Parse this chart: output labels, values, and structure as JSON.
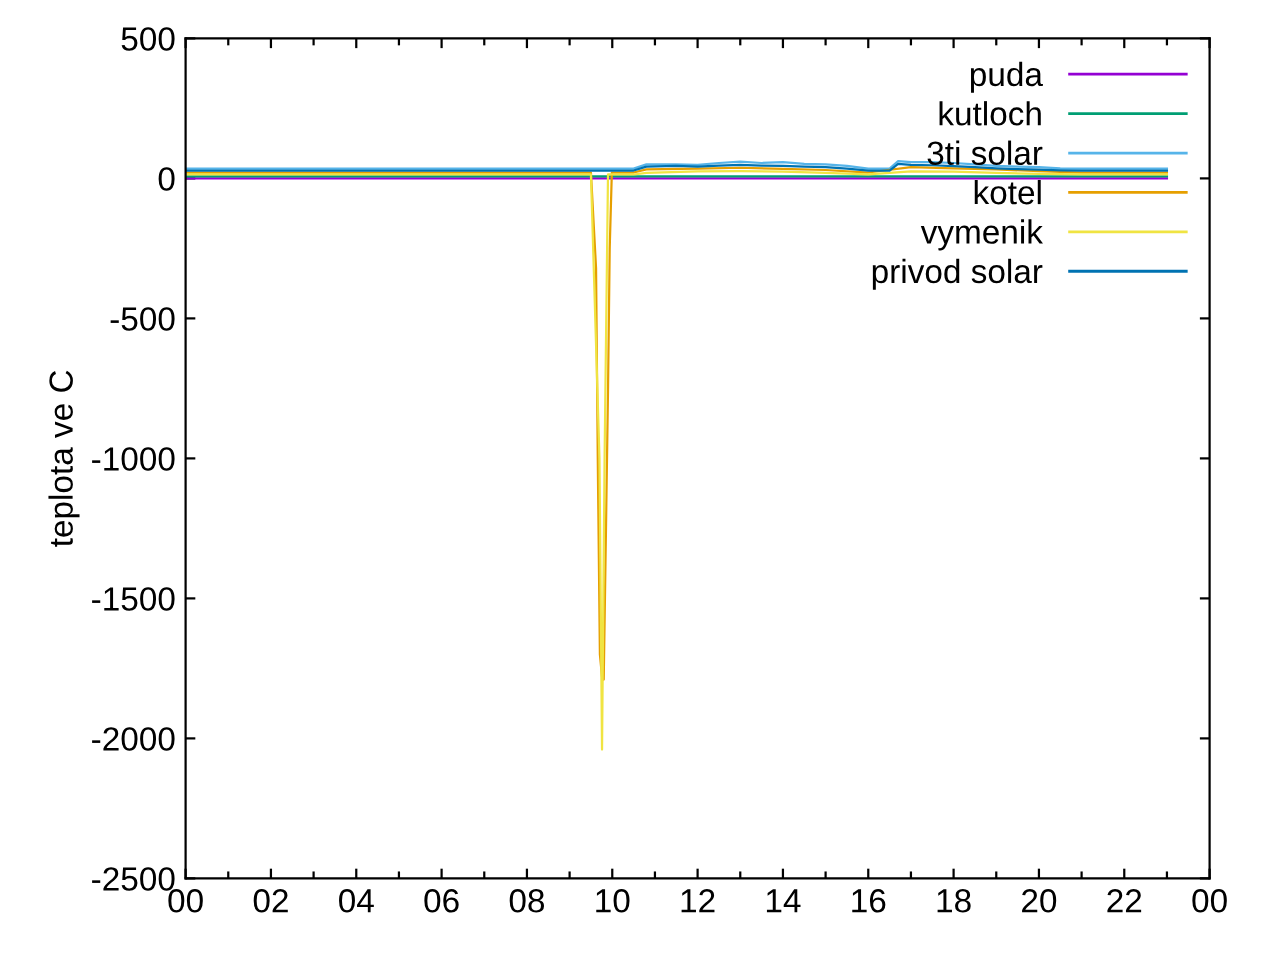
{
  "chart_data": {
    "type": "line",
    "ylabel": "teplota ve C",
    "xlim": [
      0,
      24
    ],
    "ylim": [
      -2500,
      500
    ],
    "xticks": [
      {
        "value": 0,
        "label": "00"
      },
      {
        "value": 1,
        "label": null
      },
      {
        "value": 2,
        "label": "02"
      },
      {
        "value": 3,
        "label": null
      },
      {
        "value": 4,
        "label": "04"
      },
      {
        "value": 5,
        "label": null
      },
      {
        "value": 6,
        "label": "06"
      },
      {
        "value": 7,
        "label": null
      },
      {
        "value": 8,
        "label": "08"
      },
      {
        "value": 9,
        "label": null
      },
      {
        "value": 10,
        "label": "10"
      },
      {
        "value": 11,
        "label": null
      },
      {
        "value": 12,
        "label": "12"
      },
      {
        "value": 13,
        "label": null
      },
      {
        "value": 14,
        "label": "14"
      },
      {
        "value": 15,
        "label": null
      },
      {
        "value": 16,
        "label": "16"
      },
      {
        "value": 17,
        "label": null
      },
      {
        "value": 18,
        "label": "18"
      },
      {
        "value": 19,
        "label": null
      },
      {
        "value": 20,
        "label": "20"
      },
      {
        "value": 21,
        "label": null
      },
      {
        "value": 22,
        "label": "22"
      },
      {
        "value": 23,
        "label": null
      },
      {
        "value": 24,
        "label": "00"
      }
    ],
    "yticks": [
      -2500,
      -2000,
      -1500,
      -1000,
      -500,
      0,
      500
    ],
    "grid": false,
    "legend": "top right",
    "marker": "none",
    "line_style": "solid",
    "x": [
      0,
      2,
      4,
      6,
      8,
      9.5,
      10.5,
      10.8,
      11.5,
      12,
      12.5,
      13,
      13.5,
      14,
      14.5,
      15,
      15.5,
      16,
      16.5,
      16.7,
      17,
      17.5,
      18,
      18.5,
      19,
      19.5,
      20,
      20.5,
      21,
      22,
      23
    ],
    "series": [
      {
        "name": "puda",
        "color": "#9400d3",
        "values": [
          0,
          0,
          0,
          0,
          0,
          0,
          0,
          0,
          0,
          0,
          0,
          0,
          0,
          0,
          0,
          0,
          0,
          0,
          0,
          0,
          0,
          0,
          0,
          0,
          0,
          0,
          0,
          0,
          0,
          0,
          0
        ]
      },
      {
        "name": "kutloch",
        "color": "#009e73",
        "values": [
          7,
          7,
          7,
          7,
          7,
          7,
          7,
          7,
          7,
          7,
          7,
          7,
          7,
          7,
          7,
          7,
          7,
          7,
          7,
          7,
          7,
          7,
          7,
          7,
          7,
          7,
          7,
          7,
          7,
          7,
          7
        ]
      },
      {
        "name": "3ti solar",
        "color": "#56b4e9",
        "values": [
          35,
          35,
          35,
          35,
          35,
          35,
          35,
          50,
          50,
          48,
          55,
          60,
          55,
          58,
          52,
          50,
          45,
          35,
          35,
          62,
          58,
          58,
          55,
          50,
          45,
          42,
          40,
          36,
          35,
          35,
          35
        ]
      },
      {
        "name": "kotel",
        "color": "#e69f00",
        "x": [
          0,
          2,
          4,
          6,
          8,
          9.5,
          9.62,
          9.66,
          9.71,
          9.76,
          9.8,
          9.85,
          9.9,
          9.94,
          9.99,
          10.5,
          10.8,
          12,
          13,
          14,
          15,
          16,
          17,
          18,
          19,
          20,
          21,
          22,
          23
        ],
        "values": [
          21,
          21,
          21,
          21,
          21,
          21,
          -320,
          -1000,
          -1700,
          -1780,
          -1790,
          -1280,
          -760,
          -250,
          21,
          21,
          32,
          35,
          38,
          34,
          30,
          21,
          40,
          36,
          32,
          26,
          21,
          21,
          21
        ]
      },
      {
        "name": "vymenik",
        "color": "#f0e442",
        "x": [
          0,
          8,
          9.5,
          9.7,
          9.76,
          9.82,
          9.9,
          10.5,
          10.8,
          12,
          13,
          14,
          15,
          16,
          17,
          18,
          19,
          20,
          21,
          22,
          23
        ],
        "values": [
          14,
          14,
          14,
          -1000,
          -2040,
          -1000,
          14,
          14,
          20,
          25,
          26,
          24,
          20,
          14,
          25,
          24,
          20,
          16,
          14,
          14,
          14
        ]
      },
      {
        "name": "privod solar",
        "color": "#0072b2",
        "values": [
          28,
          28,
          28,
          28,
          28,
          28,
          28,
          42,
          45,
          42,
          46,
          48,
          46,
          45,
          42,
          40,
          35,
          28,
          28,
          52,
          48,
          47,
          44,
          40,
          36,
          33,
          31,
          29,
          28,
          28,
          28
        ]
      }
    ]
  }
}
